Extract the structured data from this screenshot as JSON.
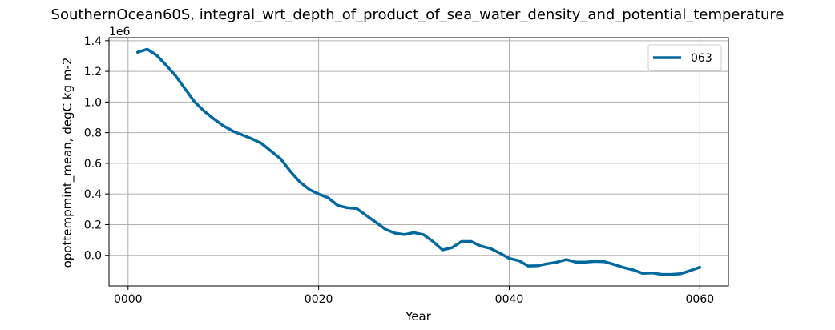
{
  "chart_data": {
    "type": "line",
    "title": "SouthernOcean60S, integral_wrt_depth_of_product_of_sea_water_density_and_potential_temperature",
    "xlabel": "Year",
    "ylabel": "opottempmint_mean, degC kg m-2",
    "y_offset_label": "1e6",
    "xlim": [
      -2,
      63
    ],
    "ylim": [
      -0.2,
      1.42
    ],
    "x_ticks": [
      0,
      20,
      40,
      60
    ],
    "x_tick_labels": [
      "0000",
      "0020",
      "0040",
      "0060"
    ],
    "y_ticks": [
      0.0,
      0.2,
      0.4,
      0.6,
      0.8,
      1.0,
      1.2,
      1.4
    ],
    "y_tick_labels": [
      "0.0",
      "0.2",
      "0.4",
      "0.6",
      "0.8",
      "1.0",
      "1.2",
      "1.4"
    ],
    "grid": true,
    "legend_position": "top-right",
    "series": [
      {
        "name": "063",
        "color": "#0068a0",
        "x": [
          1,
          2,
          3,
          4,
          5,
          6,
          7,
          8,
          9,
          10,
          11,
          12,
          13,
          14,
          15,
          16,
          17,
          18,
          19,
          20,
          21,
          22,
          23,
          24,
          25,
          26,
          27,
          28,
          29,
          30,
          31,
          32,
          33,
          34,
          35,
          36,
          37,
          38,
          39,
          40,
          41,
          42,
          43,
          44,
          45,
          46,
          47,
          48,
          49,
          50,
          51,
          52,
          53,
          54,
          55,
          56,
          57,
          58,
          59,
          60
        ],
        "values": [
          1.325,
          1.345,
          1.305,
          1.24,
          1.17,
          1.085,
          1.0,
          0.94,
          0.89,
          0.845,
          0.81,
          0.785,
          0.76,
          0.73,
          0.68,
          0.63,
          0.55,
          0.48,
          0.43,
          0.4,
          0.375,
          0.325,
          0.31,
          0.305,
          0.26,
          0.215,
          0.17,
          0.145,
          0.135,
          0.148,
          0.135,
          0.09,
          0.035,
          0.05,
          0.09,
          0.09,
          0.06,
          0.045,
          0.015,
          -0.02,
          -0.035,
          -0.07,
          -0.068,
          -0.055,
          -0.045,
          -0.028,
          -0.045,
          -0.045,
          -0.04,
          -0.042,
          -0.06,
          -0.08,
          -0.095,
          -0.118,
          -0.115,
          -0.125,
          -0.125,
          -0.12,
          -0.1,
          -0.078
        ]
      }
    ]
  }
}
